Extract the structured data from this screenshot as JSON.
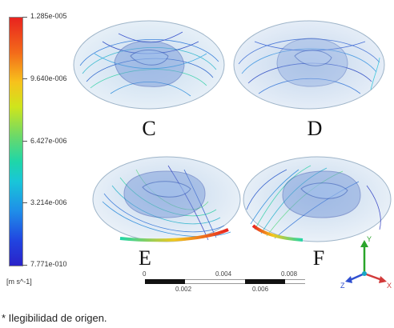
{
  "colorbar": {
    "ticks": [
      "1.285e-005",
      "9.640e-006",
      "6.427e-006",
      "3.214e-006",
      "7.771e-010"
    ],
    "units": "[m s^-1]"
  },
  "panels": [
    {
      "id": "C",
      "label": "C"
    },
    {
      "id": "D",
      "label": "D"
    },
    {
      "id": "E",
      "label": "E"
    },
    {
      "id": "F",
      "label": "F"
    }
  ],
  "scale": {
    "top_labels": [
      "0",
      "0.004",
      "0.008"
    ],
    "bottom_labels": [
      "0.002",
      "0.006"
    ]
  },
  "axes": {
    "y": "Y",
    "x": "X",
    "z": "Z"
  },
  "footnote": "* Ilegibilidad de origen."
}
